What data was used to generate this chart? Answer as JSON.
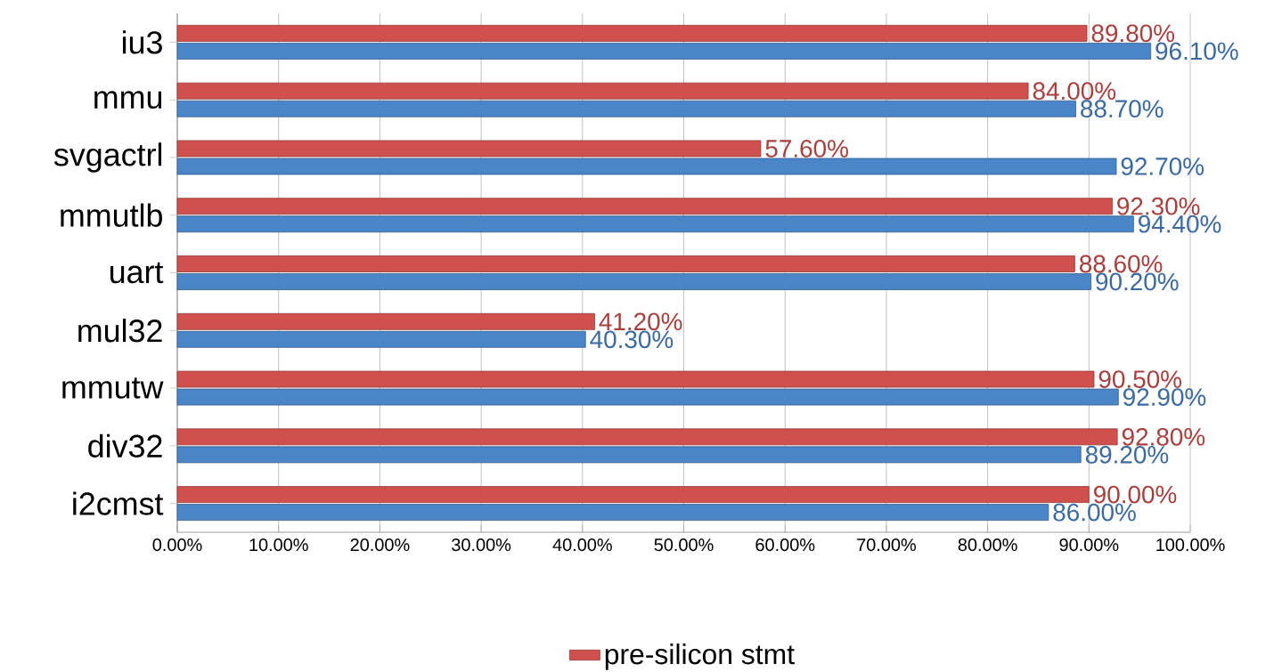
{
  "chart_data": {
    "type": "bar",
    "orientation": "horizontal",
    "categories": [
      "iu3",
      "mmu",
      "svgactrl",
      "mmutlb",
      "uart",
      "mul32",
      "mmutw",
      "div32",
      "i2cmst"
    ],
    "series": [
      {
        "name": "pre-silicon stmt",
        "color": "#d0504d",
        "values": [
          89.8,
          84.0,
          57.6,
          92.3,
          88.6,
          41.2,
          90.5,
          92.8,
          90.0
        ],
        "value_labels": [
          "89.80%",
          "84.00%",
          "57.60%",
          "92.30%",
          "88.60%",
          "41.20%",
          "90.50%",
          "92.80%",
          "90.00%"
        ]
      },
      {
        "color": "#4a85c8",
        "values": [
          96.1,
          88.7,
          92.7,
          94.4,
          90.2,
          40.3,
          92.9,
          89.2,
          86.0
        ],
        "value_labels": [
          "96.10%",
          "88.70%",
          "92.70%",
          "94.40%",
          "90.20%",
          "40.30%",
          "92.90%",
          "89.20%",
          "86.00%"
        ]
      }
    ],
    "xlim": [
      0,
      100
    ],
    "xticks": [
      {
        "value": 0,
        "label": "0.00%"
      },
      {
        "value": 10,
        "label": "10.00%"
      },
      {
        "value": 20,
        "label": "20.00%"
      },
      {
        "value": 30,
        "label": "30.00%"
      },
      {
        "value": 40,
        "label": "40.00%"
      },
      {
        "value": 50,
        "label": "50.00%"
      },
      {
        "value": 60,
        "label": "60.00%"
      },
      {
        "value": 70,
        "label": "70.00%"
      },
      {
        "value": 80,
        "label": "80.00%"
      },
      {
        "value": 90,
        "label": "90.00%"
      },
      {
        "value": 100,
        "label": "100.00%"
      }
    ],
    "grid": "x",
    "legend": "bottom"
  }
}
